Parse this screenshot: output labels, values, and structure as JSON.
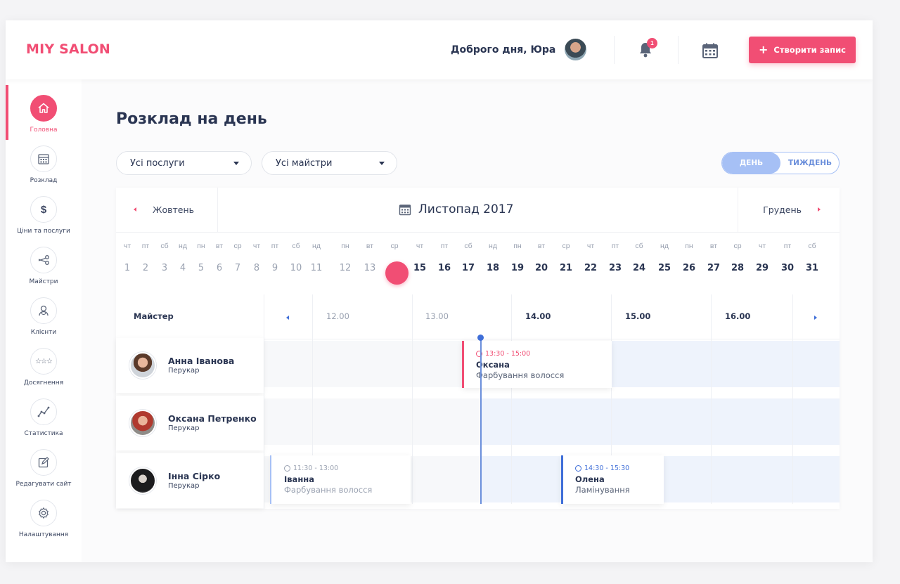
{
  "header": {
    "logo": "MIY SALON",
    "greeting": "Доброго дня, Юра",
    "notifications_count": "1",
    "create_button": "Створити запис"
  },
  "sidebar": {
    "items": [
      {
        "label": "Головна",
        "icon": "home-icon",
        "active": true
      },
      {
        "label": "Розклад",
        "icon": "calendar-icon"
      },
      {
        "label": "Ціни та послуги",
        "icon": "dollar-icon"
      },
      {
        "label": "Майстри",
        "icon": "scissors-icon"
      },
      {
        "label": "Клієнти",
        "icon": "users-icon"
      },
      {
        "label": "Досягнення",
        "icon": "stars-icon"
      },
      {
        "label": "Статистика",
        "icon": "chart-icon"
      },
      {
        "label": "Редагувати сайт",
        "icon": "edit-icon"
      },
      {
        "label": "Налаштування",
        "icon": "gear-icon"
      }
    ]
  },
  "page": {
    "title": "Розклад на день",
    "filter_services": "Усі послуги",
    "filter_masters": "Усі майстри",
    "view_day": "ДЕНЬ",
    "view_week": "ТИЖДЕНЬ"
  },
  "calendar": {
    "prev_month": "Жовтень",
    "current_month": "Листопад 2017",
    "next_month": "Грудень",
    "days": [
      {
        "w": "чт",
        "n": "1"
      },
      {
        "w": "пт",
        "n": "2"
      },
      {
        "w": "сб",
        "n": "3"
      },
      {
        "w": "нд",
        "n": "4"
      },
      {
        "w": "пн",
        "n": "5"
      },
      {
        "w": "вт",
        "n": "6"
      },
      {
        "w": "ср",
        "n": "7"
      },
      {
        "w": "чт",
        "n": "8"
      },
      {
        "w": "пт",
        "n": "9"
      },
      {
        "w": "сб",
        "n": "10"
      },
      {
        "w": "нд",
        "n": "11"
      },
      {
        "w": "пн",
        "n": "12"
      },
      {
        "w": "вт",
        "n": "13"
      },
      {
        "w": "ср",
        "n": "14"
      },
      {
        "w": "чт",
        "n": "15"
      },
      {
        "w": "пт",
        "n": "16"
      },
      {
        "w": "сб",
        "n": "17"
      },
      {
        "w": "нд",
        "n": "18"
      },
      {
        "w": "пн",
        "n": "19"
      },
      {
        "w": "вт",
        "n": "20"
      },
      {
        "w": "ср",
        "n": "21"
      },
      {
        "w": "чт",
        "n": "22"
      },
      {
        "w": "пт",
        "n": "23"
      },
      {
        "w": "сб",
        "n": "24"
      },
      {
        "w": "нд",
        "n": "25"
      },
      {
        "w": "пн",
        "n": "26"
      },
      {
        "w": "вт",
        "n": "27"
      },
      {
        "w": "ср",
        "n": "28"
      },
      {
        "w": "чт",
        "n": "29"
      },
      {
        "w": "пт",
        "n": "30"
      },
      {
        "w": "сб",
        "n": "31"
      }
    ],
    "today": "14"
  },
  "schedule": {
    "master_header": "Майстер",
    "times": [
      "12.00",
      "13.00",
      "14.00",
      "15.00",
      "16.00"
    ],
    "masters": [
      {
        "name": "Анна Іванова",
        "role": "Перукар"
      },
      {
        "name": "Оксана Петренко",
        "role": "Перукар"
      },
      {
        "name": "Інна Сірко",
        "role": "Перукар"
      }
    ],
    "appointments": [
      {
        "time": "13:30 - 15:00",
        "client": "Оксана",
        "service": "Фарбування волосся"
      },
      {
        "time": "11:30 - 13:00",
        "client": "Іванна",
        "service": "Фарбування волосся"
      },
      {
        "time": "14:30 - 15:30",
        "client": "Олена",
        "service": "Ламінування"
      }
    ]
  },
  "colors": {
    "accent": "#f14e74",
    "blue": "#6b8fdb",
    "text": "#2a3552"
  }
}
